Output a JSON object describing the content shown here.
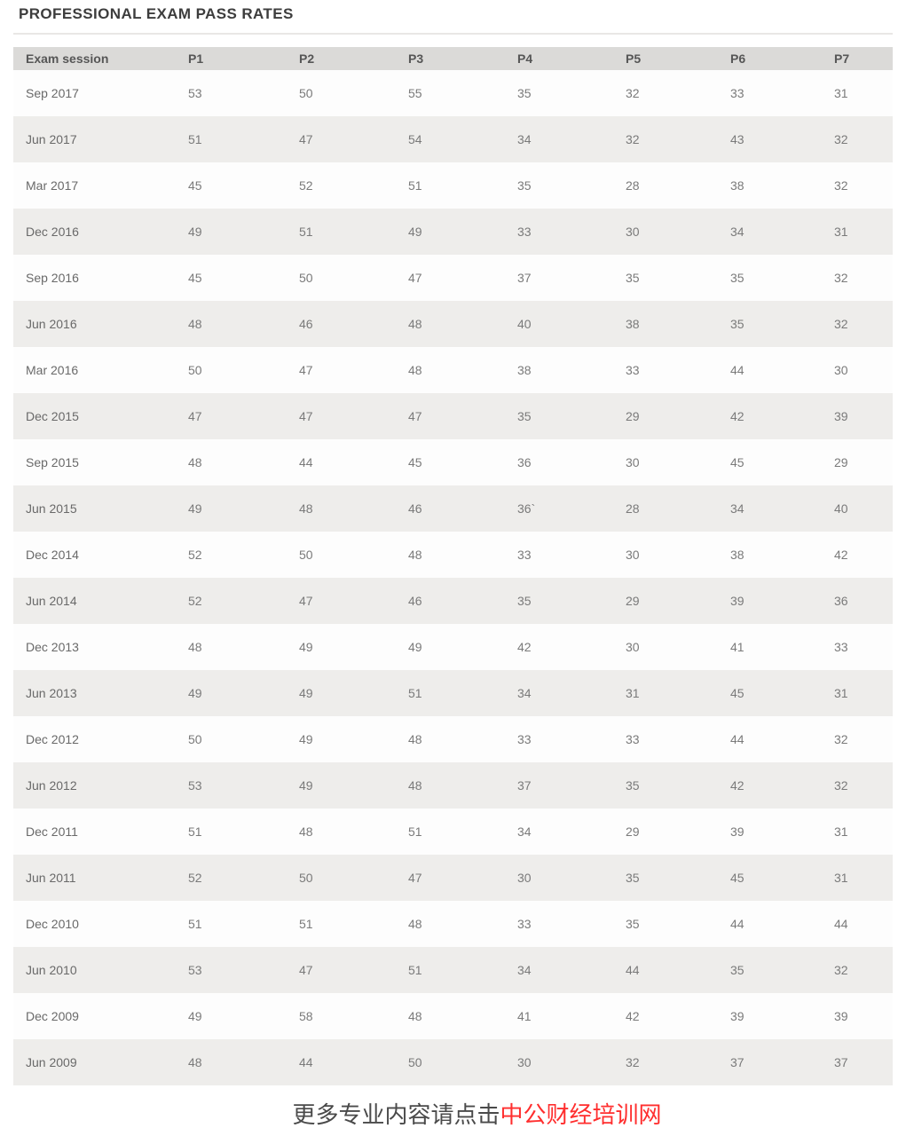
{
  "page": {
    "title": "PROFESSIONAL EXAM PASS RATES",
    "footer": {
      "prefix": "更多专业内容请点击",
      "link": "中公财经培训网",
      "link_color": "#ff2e2e"
    }
  },
  "chart_data": {
    "type": "table",
    "title": "PROFESSIONAL EXAM PASS RATES",
    "columns": [
      "Exam session",
      "P1",
      "P2",
      "P3",
      "P4",
      "P5",
      "P6",
      "P7"
    ],
    "rows": [
      [
        "Sep 2017",
        "53",
        "50",
        "55",
        "35",
        "32",
        "33",
        "31"
      ],
      [
        "Jun 2017",
        "51",
        "47",
        "54",
        "34",
        "32",
        "43",
        "32"
      ],
      [
        "Mar 2017",
        "45",
        "52",
        "51",
        "35",
        "28",
        "38",
        "32"
      ],
      [
        "Dec 2016",
        "49",
        "51",
        "49",
        "33",
        "30",
        "34",
        "31"
      ],
      [
        "Sep 2016",
        "45",
        "50",
        "47",
        "37",
        "35",
        "35",
        "32"
      ],
      [
        "Jun 2016",
        "48",
        "46",
        "48",
        "40",
        "38",
        "35",
        "32"
      ],
      [
        "Mar 2016",
        "50",
        "47",
        "48",
        "38",
        "33",
        "44",
        "30"
      ],
      [
        "Dec 2015",
        "47",
        "47",
        "47",
        "35",
        "29",
        "42",
        "39"
      ],
      [
        "Sep 2015",
        "48",
        "44",
        "45",
        "36",
        "30",
        "45",
        "29"
      ],
      [
        "Jun 2015",
        "49",
        "48",
        "46",
        "36`",
        "28",
        "34",
        "40"
      ],
      [
        "Dec 2014",
        "52",
        "50",
        "48",
        "33",
        "30",
        "38",
        "42"
      ],
      [
        "Jun 2014",
        "52",
        "47",
        "46",
        "35",
        "29",
        "39",
        "36"
      ],
      [
        "Dec 2013",
        "48",
        "49",
        "49",
        "42",
        "30",
        "41",
        "33"
      ],
      [
        "Jun 2013",
        "49",
        "49",
        "51",
        "34",
        "31",
        "45",
        "31"
      ],
      [
        "Dec 2012",
        "50",
        "49",
        "48",
        "33",
        "33",
        "44",
        "32"
      ],
      [
        "Jun 2012",
        "53",
        "49",
        "48",
        "37",
        "35",
        "42",
        "32"
      ],
      [
        "Dec 2011",
        "51",
        "48",
        "51",
        "34",
        "29",
        "39",
        "31"
      ],
      [
        "Jun 2011",
        "52",
        "50",
        "47",
        "30",
        "35",
        "45",
        "31"
      ],
      [
        "Dec 2010",
        "51",
        "51",
        "48",
        "33",
        "35",
        "44",
        "44"
      ],
      [
        "Jun 2010",
        "53",
        "47",
        "51",
        "34",
        "44",
        "35",
        "32"
      ],
      [
        "Dec 2009",
        "49",
        "58",
        "48",
        "41",
        "42",
        "39",
        "39"
      ],
      [
        "Jun 2009",
        "48",
        "44",
        "50",
        "30",
        "32",
        "37",
        "37"
      ]
    ],
    "row_striping": "alternating white / light-gray starting white",
    "header_background": "#dbdad8",
    "stripe_background": "#eeedeb"
  }
}
